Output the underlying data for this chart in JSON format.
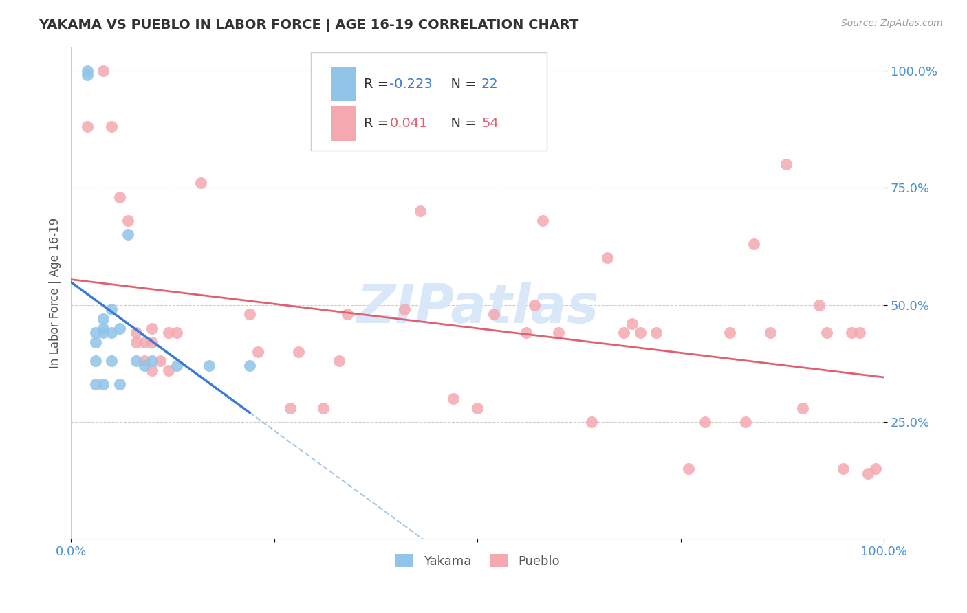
{
  "title": "YAKAMA VS PUEBLO IN LABOR FORCE | AGE 16-19 CORRELATION CHART",
  "source_text": "Source: ZipAtlas.com",
  "ylabel": "In Labor Force | Age 16-19",
  "xlim": [
    0.0,
    1.0
  ],
  "ylim": [
    0.0,
    1.05
  ],
  "yakama_color": "#90C4E8",
  "pueblo_color": "#F4A8B0",
  "trendline_yakama_color": "#3A7BD5",
  "trendline_pueblo_color": "#E06070",
  "trendline_dashed_color": "#A8C8E8",
  "watermark_color": "#D8E8F8",
  "legend_R_yakama": "-0.223",
  "legend_N_yakama": "22",
  "legend_R_pueblo": "0.041",
  "legend_N_pueblo": "54",
  "yakama_x": [
    0.02,
    0.02,
    0.03,
    0.03,
    0.03,
    0.03,
    0.04,
    0.04,
    0.04,
    0.04,
    0.05,
    0.05,
    0.05,
    0.06,
    0.06,
    0.07,
    0.08,
    0.09,
    0.1,
    0.13,
    0.17,
    0.22
  ],
  "yakama_y": [
    0.99,
    1.0,
    0.44,
    0.42,
    0.38,
    0.33,
    0.47,
    0.45,
    0.44,
    0.33,
    0.49,
    0.44,
    0.38,
    0.45,
    0.33,
    0.65,
    0.38,
    0.37,
    0.38,
    0.37,
    0.37,
    0.37
  ],
  "pueblo_x": [
    0.02,
    0.04,
    0.05,
    0.06,
    0.07,
    0.08,
    0.08,
    0.09,
    0.09,
    0.1,
    0.1,
    0.1,
    0.11,
    0.12,
    0.12,
    0.13,
    0.16,
    0.22,
    0.23,
    0.27,
    0.28,
    0.31,
    0.33,
    0.34,
    0.41,
    0.43,
    0.47,
    0.5,
    0.52,
    0.56,
    0.57,
    0.58,
    0.6,
    0.64,
    0.66,
    0.68,
    0.69,
    0.7,
    0.72,
    0.76,
    0.78,
    0.81,
    0.83,
    0.84,
    0.86,
    0.88,
    0.9,
    0.92,
    0.93,
    0.95,
    0.96,
    0.97,
    0.98,
    0.99
  ],
  "pueblo_y": [
    0.88,
    1.0,
    0.88,
    0.73,
    0.68,
    0.44,
    0.42,
    0.42,
    0.38,
    0.45,
    0.42,
    0.36,
    0.38,
    0.44,
    0.36,
    0.44,
    0.76,
    0.48,
    0.4,
    0.28,
    0.4,
    0.28,
    0.38,
    0.48,
    0.49,
    0.7,
    0.3,
    0.28,
    0.48,
    0.44,
    0.5,
    0.68,
    0.44,
    0.25,
    0.6,
    0.44,
    0.46,
    0.44,
    0.44,
    0.15,
    0.25,
    0.44,
    0.25,
    0.63,
    0.44,
    0.8,
    0.28,
    0.5,
    0.44,
    0.15,
    0.44,
    0.44,
    0.14,
    0.15
  ]
}
